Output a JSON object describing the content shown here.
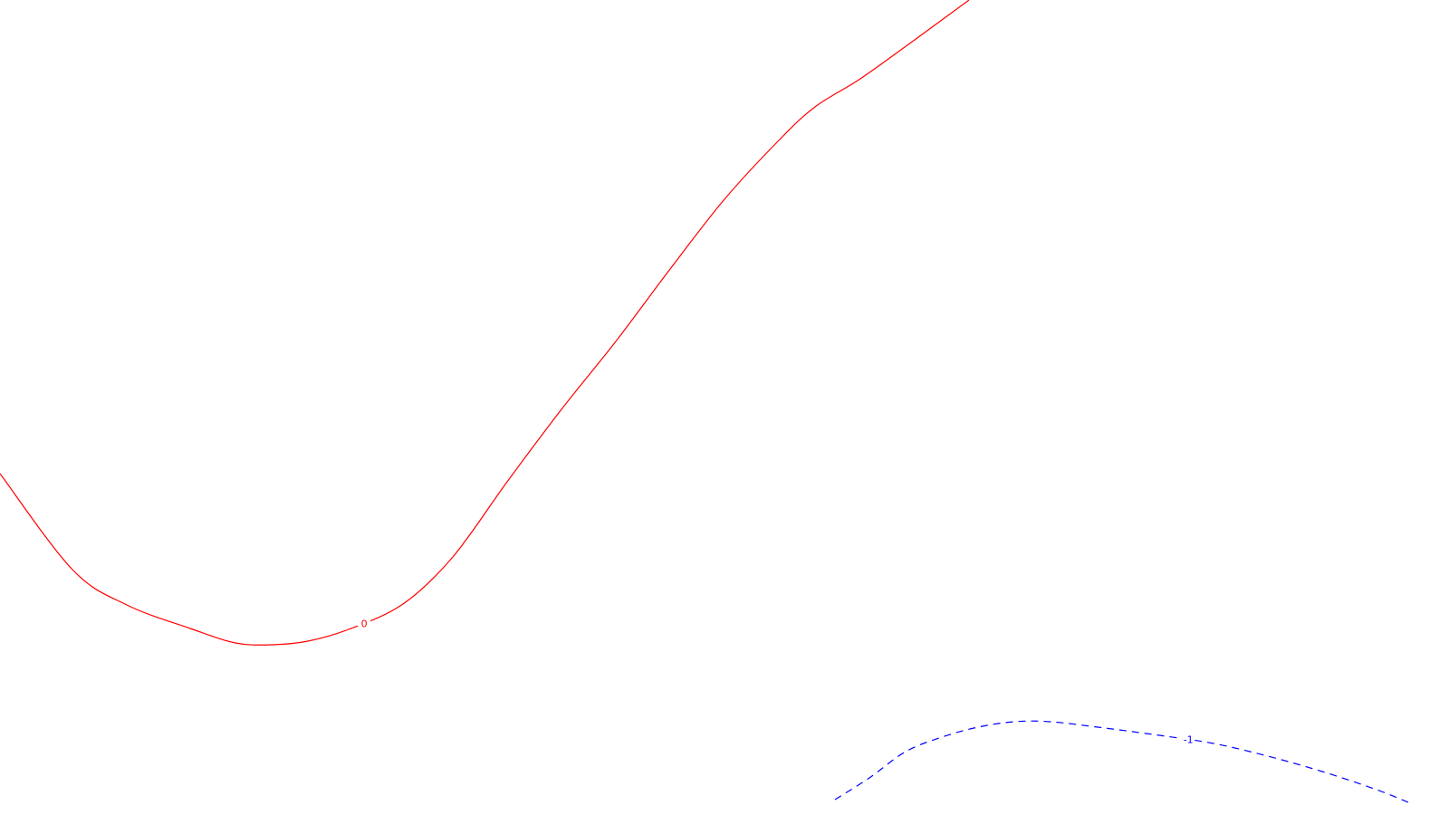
{
  "colors": {
    "background": "#ffffff",
    "contour_0": "#ff0000",
    "contour_1": "#0000ff"
  },
  "chart_data": {
    "type": "line",
    "title": "",
    "xlabel": "",
    "ylabel": "",
    "grid": false,
    "series": [
      {
        "label": "0",
        "color": "#ff0000",
        "style": "solid",
        "x": [
          0,
          80,
          140,
          210,
          260,
          300,
          340,
          385,
          445,
          500,
          560,
          620,
          680,
          740,
          800,
          860,
          900,
          950,
          1010,
          1070
        ],
        "y": [
          377,
          271,
          232,
          206,
          190,
          188,
          192,
          205,
          233,
          285,
          368,
          448,
          523,
          603,
          680,
          745,
          782,
          813,
          856,
          900
        ]
      },
      {
        "label": "-1",
        "color": "#0000ff",
        "style": "dashed",
        "x": [
          922,
          960,
          1000,
          1040,
          1080,
          1120,
          1160,
          1220,
          1280,
          1340,
          1400,
          1460,
          1520,
          1555
        ],
        "y": [
          17,
          41,
          70,
          86,
          97,
          103,
          103,
          96,
          88,
          79,
          65,
          48,
          28,
          14
        ]
      }
    ]
  }
}
